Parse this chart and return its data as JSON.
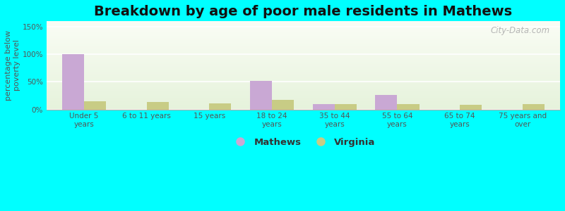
{
  "title": "Breakdown by age of poor male residents in Mathews",
  "categories": [
    "Under 5\nyears",
    "6 to 11 years",
    "15 years",
    "18 to 24\nyears",
    "35 to 44\nyears",
    "55 to 64\nyears",
    "65 to 74\nyears",
    "75 years and\nover"
  ],
  "mathews_values": [
    100,
    0,
    0,
    52,
    10,
    26,
    0,
    0
  ],
  "virginia_values": [
    15,
    13,
    11,
    17,
    9,
    10,
    8,
    9
  ],
  "mathews_color": "#c9a8d4",
  "virginia_color": "#c8cc85",
  "ylabel": "percentage below\npoverty level",
  "yticks": [
    0,
    50,
    100,
    150
  ],
  "ytick_labels": [
    "0%",
    "50%",
    "100%",
    "150%"
  ],
  "ylim": [
    0,
    160
  ],
  "bar_width": 0.35,
  "outer_bg": "#00ffff",
  "watermark": "City-Data.com",
  "legend_mathews": "Mathews",
  "legend_virginia": "Virginia",
  "title_fontsize": 14,
  "tick_fontsize": 7.5,
  "ylabel_fontsize": 8
}
